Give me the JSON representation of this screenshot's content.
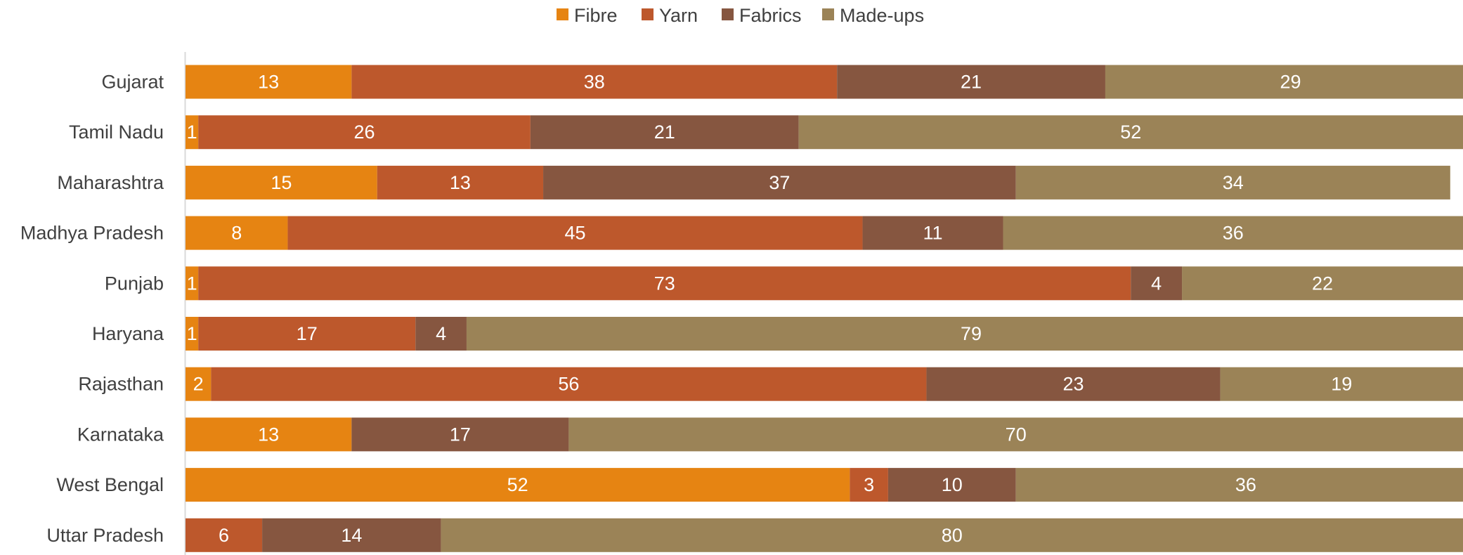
{
  "chart_data": {
    "type": "bar",
    "orientation": "horizontal",
    "stacked": true,
    "title": "",
    "xlabel": "",
    "ylabel": "",
    "xlim": [
      0,
      100
    ],
    "grid": false,
    "legend_position": "top-center",
    "categories": [
      "Gujarat",
      "Tamil Nadu",
      "Maharashtra",
      "Madhya Pradesh",
      "Punjab",
      "Haryana",
      "Rajasthan",
      "Karnataka",
      "West Bengal",
      "Uttar Pradesh"
    ],
    "series": [
      {
        "name": "Fibre",
        "color": "#E68412",
        "values": [
          13,
          1,
          15,
          8,
          1,
          1,
          2,
          13,
          52,
          0
        ]
      },
      {
        "name": "Yarn",
        "color": "#BD582C",
        "values": [
          38,
          26,
          13,
          45,
          73,
          17,
          56,
          0,
          3,
          6
        ]
      },
      {
        "name": "Fabrics",
        "color": "#865640",
        "values": [
          21,
          21,
          37,
          11,
          4,
          4,
          23,
          17,
          10,
          14
        ]
      },
      {
        "name": "Made-ups",
        "color": "#9B8357",
        "values": [
          29,
          52,
          34,
          36,
          22,
          79,
          19,
          70,
          36,
          80
        ]
      }
    ]
  }
}
